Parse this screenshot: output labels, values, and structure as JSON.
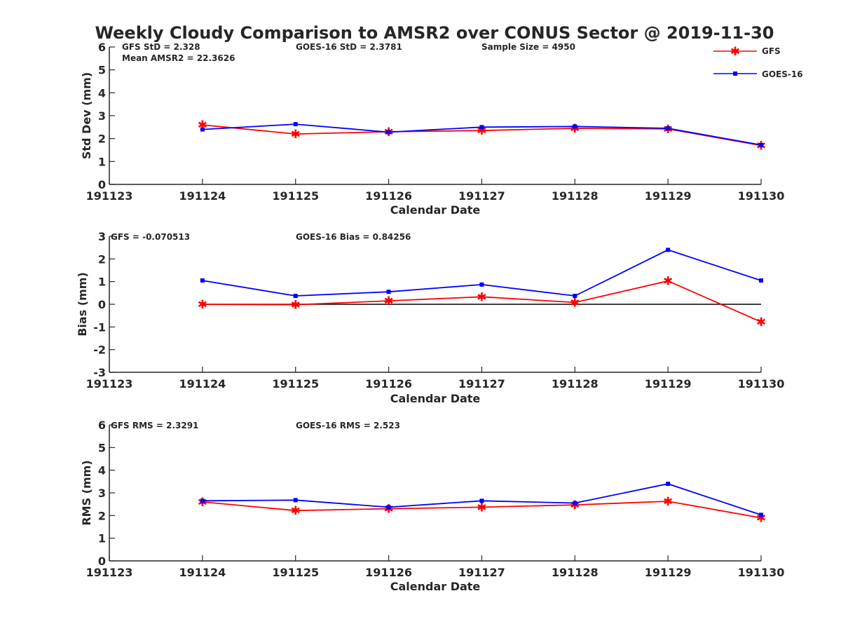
{
  "figure": {
    "title": "Weekly Cloudy Comparison to AMSR2 over CONUS Sector @ 2019-11-30"
  },
  "legend": {
    "placement": "top-right",
    "entries": [
      {
        "name": "GFS",
        "color": "#ff0000",
        "marker": "asterisk"
      },
      {
        "name": "GOES-16",
        "color": "#0000ff",
        "marker": "square"
      }
    ]
  },
  "chart_data": [
    {
      "type": "line",
      "title": "",
      "xlabel": "Calendar Date",
      "ylabel": "Std Dev (mm)",
      "xticks": [
        "191123",
        "191124",
        "191125",
        "191126",
        "191127",
        "191128",
        "191129",
        "191130"
      ],
      "yticks": [
        "0",
        "1",
        "2",
        "3",
        "4",
        "5",
        "6"
      ],
      "ylim": [
        0,
        6
      ],
      "x": [
        1,
        2,
        3,
        4,
        5,
        6,
        7
      ],
      "series": [
        {
          "name": "GFS",
          "values": [
            2.6,
            2.2,
            2.3,
            2.35,
            2.45,
            2.42,
            1.7
          ]
        },
        {
          "name": "GOES-16",
          "values": [
            2.4,
            2.63,
            2.28,
            2.5,
            2.53,
            2.45,
            1.72
          ]
        }
      ],
      "annotations": [
        "GFS StD = 2.328",
        "Mean AMSR2 = 22.3626",
        "GOES-16 StD = 2.3781",
        "Sample Size = 4950"
      ]
    },
    {
      "type": "line",
      "title": "",
      "xlabel": "Calendar Date",
      "ylabel": "Bias (mm)",
      "xticks": [
        "191123",
        "191124",
        "191125",
        "191126",
        "191127",
        "191128",
        "191129",
        "191130"
      ],
      "yticks": [
        "-3",
        "-2",
        "-1",
        "0",
        "1",
        "2",
        "3"
      ],
      "ylim": [
        -3,
        3
      ],
      "x": [
        1,
        2,
        3,
        4,
        5,
        6,
        7
      ],
      "zero_line": true,
      "series": [
        {
          "name": "GFS",
          "values": [
            0.0,
            -0.02,
            0.15,
            0.33,
            0.08,
            1.03,
            -0.78
          ]
        },
        {
          "name": "GOES-16",
          "values": [
            1.05,
            0.37,
            0.55,
            0.87,
            0.37,
            2.4,
            1.05
          ]
        }
      ],
      "annotations": [
        "GFS = -0.070513",
        "GOES-16 Bias  = 0.84256"
      ]
    },
    {
      "type": "line",
      "title": "",
      "xlabel": "Calendar Date",
      "ylabel": "RMS (mm)",
      "xticks": [
        "191123",
        "191124",
        "191125",
        "191126",
        "191127",
        "191128",
        "191129",
        "191130"
      ],
      "yticks": [
        "0",
        "1",
        "2",
        "3",
        "4",
        "5",
        "6"
      ],
      "ylim": [
        0,
        6
      ],
      "x": [
        1,
        2,
        3,
        4,
        5,
        6,
        7
      ],
      "series": [
        {
          "name": "GFS",
          "values": [
            2.6,
            2.22,
            2.3,
            2.37,
            2.47,
            2.63,
            1.9
          ]
        },
        {
          "name": "GOES-16",
          "values": [
            2.65,
            2.68,
            2.37,
            2.65,
            2.55,
            3.4,
            2.03
          ]
        }
      ],
      "annotations": [
        "GFS RMS = 2.3291",
        "GOES-16 RMS = 2.523"
      ]
    }
  ]
}
